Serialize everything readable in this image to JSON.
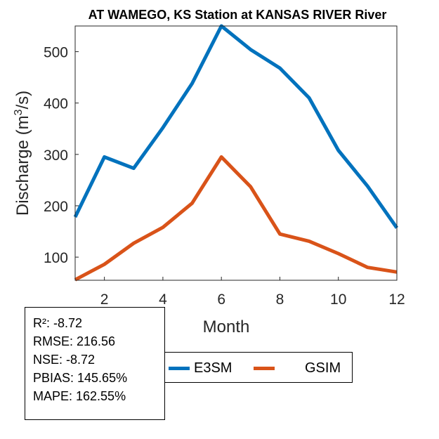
{
  "chart_data": {
    "type": "line",
    "title": "AT WAMEGO, KS  Station at  KANSAS RIVER  River",
    "xlabel": "Month",
    "ylabel_main": "Discharge (m",
    "ylabel_sup": "3",
    "ylabel_tail": "/s)",
    "x": [
      1,
      2,
      3,
      4,
      5,
      6,
      7,
      8,
      9,
      10,
      11,
      12
    ],
    "xlim": [
      1,
      12
    ],
    "ylim": [
      55,
      550
    ],
    "xticks": [
      2,
      4,
      6,
      8,
      10,
      12
    ],
    "yticks": [
      100,
      200,
      300,
      400,
      500
    ],
    "grid": false,
    "legend_position": "bottom",
    "series": [
      {
        "name": "E3SM",
        "color": "#0072BD",
        "values": [
          178,
          295,
          273,
          352,
          438,
          550,
          504,
          468,
          410,
          308,
          238,
          157
        ]
      },
      {
        "name": "GSIM",
        "color": "#D95319",
        "values": [
          56,
          86,
          127,
          158,
          205,
          295,
          237,
          145,
          131,
          107,
          80,
          71
        ]
      }
    ]
  },
  "stats": [
    "R²: -8.72",
    "RMSE: 216.56",
    "NSE: -8.72",
    "PBIAS: 145.65%",
    "MAPE: 162.55%"
  ]
}
